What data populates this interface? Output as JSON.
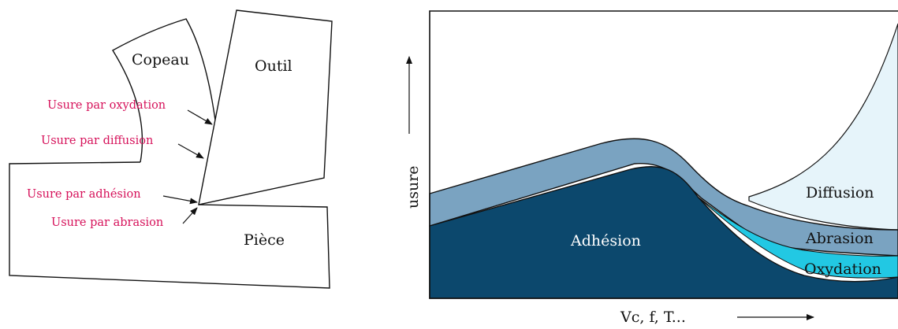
{
  "left_diagram": {
    "parts": {
      "chip": "Copeau",
      "tool": "Outil",
      "workpiece": "Pièce"
    },
    "wear_labels": {
      "oxidation": "Usure par oxydation",
      "diffusion": "Usure par diffusion",
      "adhesion": "Usure par adhésion",
      "abrasion": "Usure par abrasion"
    },
    "colors": {
      "label_text": "#d6115a",
      "outline": "#111111"
    }
  },
  "right_diagram": {
    "y_axis_label": "usure",
    "x_axis_label": "Vc, f, T...",
    "regions": {
      "adhesion": "Adhésion",
      "abrasion": "Abrasion",
      "oxidation": "Oxydation",
      "diffusion": "Diffusion"
    },
    "colors": {
      "adhesion": "#0c486d",
      "abrasion": "#7aa3c1",
      "oxidation": "#22c8e3",
      "diffusion": "#e6f4fa",
      "adhesion_text": "#ffffff",
      "other_text": "#111111"
    }
  }
}
